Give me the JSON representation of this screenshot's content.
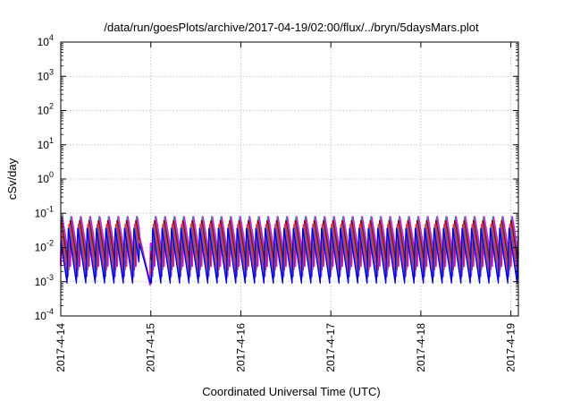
{
  "chart_data": {
    "type": "line",
    "title": "/data/run/goesPlots/archive/2017-04-19/02:00/flux/../bryn/5daysMars.plot",
    "xlabel": "Coordinated Universal Time (UTC)",
    "ylabel": "cSv/day",
    "y_scale": "log",
    "ylim": [
      0.0001,
      10000
    ],
    "xlim": [
      "2017-04-14",
      "2017-04-19 02:00"
    ],
    "grid": true,
    "y_ticks": [
      {
        "base": "10",
        "exp": "-4"
      },
      {
        "base": "10",
        "exp": "-3"
      },
      {
        "base": "10",
        "exp": "-2"
      },
      {
        "base": "10",
        "exp": "-1"
      },
      {
        "base": "10",
        "exp": "0"
      },
      {
        "base": "10",
        "exp": "1"
      },
      {
        "base": "10",
        "exp": "2"
      },
      {
        "base": "10",
        "exp": "3"
      },
      {
        "base": "10",
        "exp": "4"
      }
    ],
    "x_ticks": [
      "2017-4-14",
      "2017-4-15",
      "2017-4-16",
      "2017-4-17",
      "2017-4-18",
      "2017-4-19"
    ],
    "series_colors": [
      "#ff00ff",
      "#1f9f8f",
      "#cc0066",
      "#8b0000",
      "#7a7f12",
      "#9b30ff",
      "#ff2a2a",
      "#1e6fff",
      "#0000d0"
    ],
    "sawtooth_period_hours": 2.5,
    "eclipse": {
      "start": "2017-04-14 21:00",
      "end": "2017-04-14 23:59",
      "low_value": 0.0007
    },
    "peak_max_value": 0.1,
    "trough_min_value": 0.0009
  }
}
